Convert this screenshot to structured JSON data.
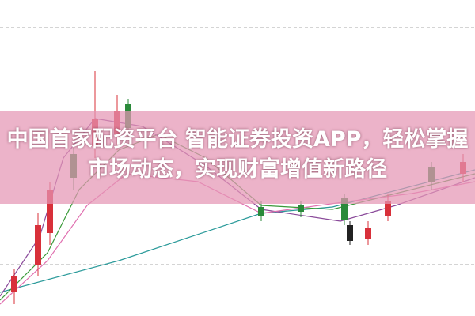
{
  "banner": {
    "title": "中国首家配资平台 智能证券投资APP，轻松掌握市场动态，实现财富增值新路径"
  }
}
